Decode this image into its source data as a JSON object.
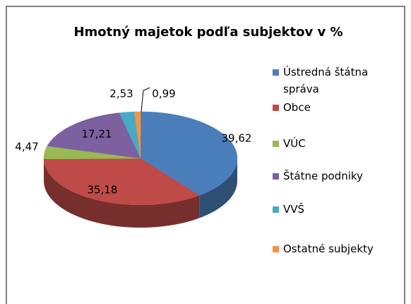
{
  "chart_data": {
    "type": "pie",
    "title": "Hmotný majetok podľa subjektov v %",
    "categories": [
      "Ústredná štátna správa",
      "Obce",
      "VÚC",
      "Štátne podniky",
      "VVŠ",
      "Ostatné subjekty"
    ],
    "values": [
      39.62,
      35.18,
      4.47,
      17.21,
      2.53,
      0.99
    ],
    "value_labels": [
      "39,62",
      "35,18",
      "4,47",
      "17,21",
      "2,53",
      "0,99"
    ],
    "colors": [
      "#4a7ebb",
      "#be4b48",
      "#98b954",
      "#7d60a0",
      "#46aac5",
      "#f69240"
    ],
    "legend": "right"
  }
}
